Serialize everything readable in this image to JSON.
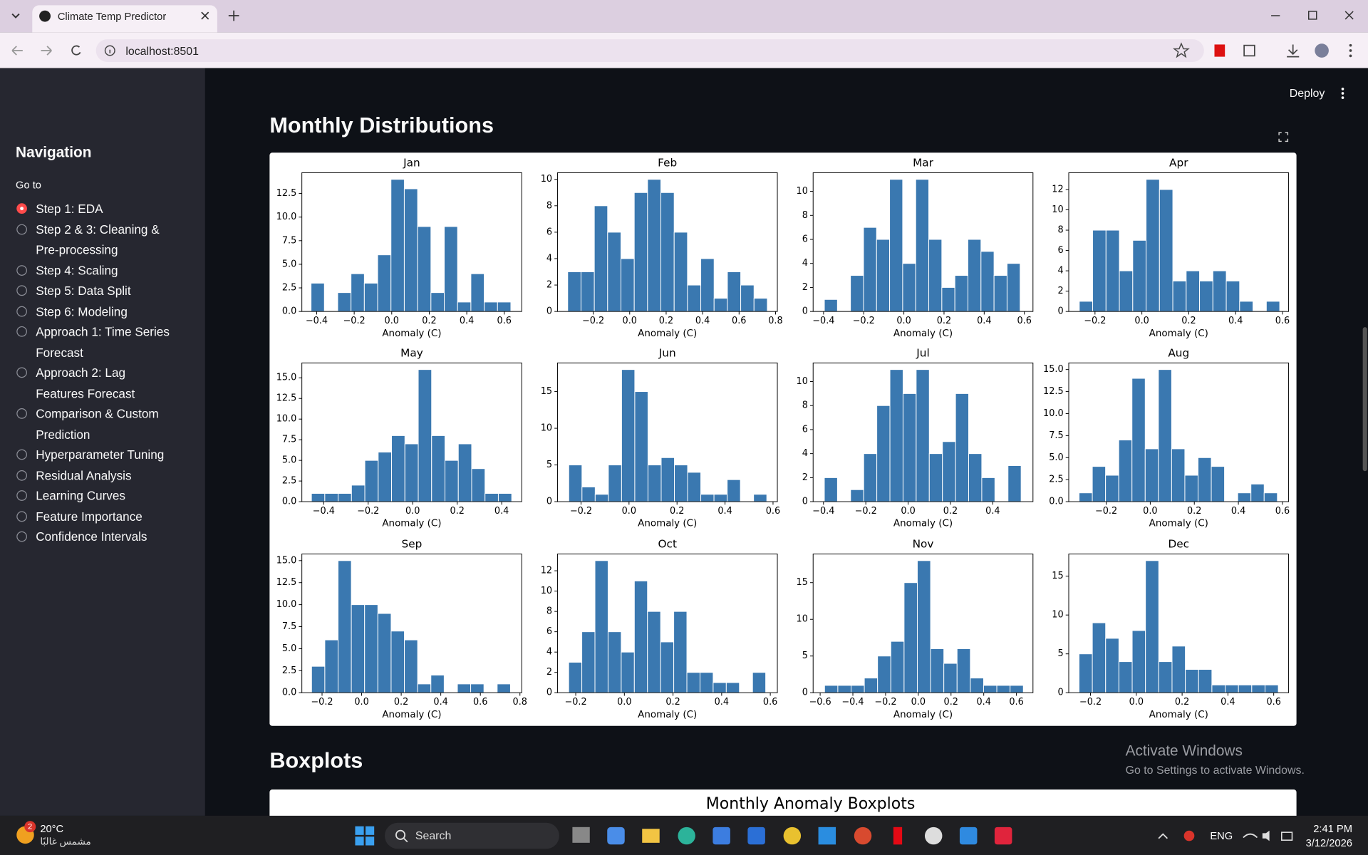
{
  "browser": {
    "tab_title": "Climate Temp Predictor",
    "url": "localhost:8501"
  },
  "app": {
    "deploy": "Deploy",
    "sidebar": {
      "title": "Navigation",
      "label": "Go to",
      "selected": 0,
      "options": [
        "Step 1: EDA",
        "Step 2 & 3: Cleaning & Pre-processing",
        "Step 4: Scaling",
        "Step 5: Data Split",
        "Step 6: Modeling",
        "Approach 1: Time Series Forecast",
        "Approach 2: Lag Features Forecast",
        "Comparison & Custom Prediction",
        "Hyperparameter Tuning",
        "Residual Analysis",
        "Learning Curves",
        "Feature Importance",
        "Confidence Intervals"
      ]
    },
    "sections": [
      "Monthly Distributions",
      "Boxplots"
    ],
    "boxplot_title": "Monthly Anomaly Boxplots"
  },
  "windows": {
    "activate_title": "Activate Windows",
    "activate_text": "Go to Settings to activate Windows.",
    "badge": "2",
    "weather_temp": "20°C",
    "weather_text": "مشمس غالبًا",
    "search": "Search",
    "language": "ENG",
    "time": "2:41 PM",
    "date": "3/12/2026"
  },
  "chart_data": [
    {
      "type": "histogram",
      "title": "Jan",
      "xlabel": "Anomaly (C)",
      "color": "#3a78b0",
      "bins": [
        -0.43,
        -0.359,
        -0.288,
        -0.217,
        -0.146,
        -0.075,
        -0.004,
        0.067,
        0.138,
        0.209,
        0.28,
        0.351,
        0.422,
        0.493,
        0.564,
        0.635
      ],
      "values": [
        3,
        0,
        2,
        4,
        3,
        6,
        14,
        13,
        9,
        2,
        9,
        1,
        4,
        1,
        1
      ],
      "xlim": [
        -0.479,
        0.693
      ],
      "ylim": [
        0,
        14.7
      ],
      "xticks": [
        {
          "value": -0.4,
          "label": "−0.4"
        },
        {
          "value": -0.2,
          "label": "−0.2"
        },
        {
          "value": 0,
          "label": "0.0"
        },
        0.2,
        0.4,
        0.6
      ],
      "yticks": [
        {
          "value": 0,
          "label": "0.0"
        },
        2.5,
        {
          "value": 5,
          "label": "5.0"
        },
        7.5,
        {
          "value": 10,
          "label": "10.0"
        },
        12.5
      ]
    },
    {
      "type": "histogram",
      "title": "Feb",
      "xlabel": "Anomaly (C)",
      "color": "#3a78b0",
      "bins": [
        -0.34,
        -0.267,
        -0.194,
        -0.121,
        -0.048,
        0.025,
        0.098,
        0.171,
        0.244,
        0.317,
        0.39,
        0.463,
        0.536,
        0.609,
        0.682,
        0.755
      ],
      "values": [
        3,
        3,
        8,
        6,
        4,
        9,
        10,
        9,
        6,
        2,
        4,
        1,
        3,
        2,
        1
      ],
      "xlim": [
        -0.396,
        0.81
      ],
      "ylim": [
        0,
        10.5
      ],
      "xticks": [
        {
          "value": -0.2,
          "label": "−0.2"
        },
        {
          "value": 0,
          "label": "0.0"
        },
        0.2,
        0.4,
        0.6,
        0.8
      ],
      "yticks": [
        0,
        2,
        4,
        6,
        8,
        10
      ]
    },
    {
      "type": "histogram",
      "title": "Mar",
      "xlabel": "Anomaly (C)",
      "color": "#3a78b0",
      "bins": [
        -0.396,
        -0.331,
        -0.266,
        -0.201,
        -0.136,
        -0.071,
        -0.006,
        0.059,
        0.124,
        0.189,
        0.254,
        0.319,
        0.384,
        0.449,
        0.514,
        0.579
      ],
      "values": [
        1,
        0,
        3,
        7,
        6,
        11,
        4,
        11,
        6,
        2,
        3,
        6,
        5,
        3,
        4
      ],
      "xlim": [
        -0.452,
        0.643
      ],
      "ylim": [
        0,
        11.55
      ],
      "xticks": [
        {
          "value": -0.4,
          "label": "−0.4"
        },
        {
          "value": -0.2,
          "label": "−0.2"
        },
        {
          "value": 0,
          "label": "0.0"
        },
        0.2,
        0.4,
        0.6
      ],
      "yticks": [
        0,
        2,
        4,
        6,
        8,
        10
      ]
    },
    {
      "type": "histogram",
      "title": "Apr",
      "xlabel": "Anomaly (C)",
      "color": "#3a78b0",
      "bins": [
        -0.267,
        -0.21,
        -0.153,
        -0.096,
        -0.039,
        0.018,
        0.075,
        0.132,
        0.189,
        0.246,
        0.303,
        0.36,
        0.417,
        0.474,
        0.531,
        0.588
      ],
      "values": [
        1,
        8,
        8,
        4,
        7,
        13,
        12,
        3,
        4,
        3,
        4,
        3,
        1,
        0,
        1
      ],
      "xlim": [
        -0.312,
        0.626
      ],
      "ylim": [
        0,
        13.65
      ],
      "xticks": [
        {
          "value": -0.2,
          "label": "−0.2"
        },
        {
          "value": 0,
          "label": "0.0"
        },
        0.2,
        0.4,
        0.6
      ],
      "yticks": [
        0,
        2,
        4,
        6,
        8,
        10,
        12
      ]
    },
    {
      "type": "histogram",
      "title": "May",
      "xlabel": "Anomaly (C)",
      "color": "#3a78b0",
      "bins": [
        -0.455,
        -0.395,
        -0.335,
        -0.275,
        -0.215,
        -0.155,
        -0.095,
        -0.035,
        0.025,
        0.085,
        0.145,
        0.205,
        0.265,
        0.325,
        0.385,
        0.445
      ],
      "values": [
        1,
        1,
        1,
        2,
        5,
        6,
        8,
        7,
        16,
        8,
        5,
        7,
        4,
        1,
        1
      ],
      "xlim": [
        -0.498,
        0.49
      ],
      "ylim": [
        0,
        16.8
      ],
      "xticks": [
        {
          "value": -0.4,
          "label": "−0.4"
        },
        {
          "value": -0.2,
          "label": "−0.2"
        },
        {
          "value": 0,
          "label": "0.0"
        },
        0.2,
        0.4
      ],
      "yticks": [
        {
          "value": 0,
          "label": "0.0"
        },
        2.5,
        {
          "value": 5,
          "label": "5.0"
        },
        7.5,
        {
          "value": 10,
          "label": "10.0"
        },
        12.5,
        {
          "value": 15,
          "label": "15.0"
        }
      ]
    },
    {
      "type": "histogram",
      "title": "Jun",
      "xlabel": "Anomaly (C)",
      "color": "#3a78b0",
      "bins": [
        -0.251,
        -0.196,
        -0.141,
        -0.086,
        -0.031,
        0.024,
        0.079,
        0.134,
        0.189,
        0.244,
        0.299,
        0.354,
        0.409,
        0.464,
        0.519,
        0.574
      ],
      "values": [
        5,
        2,
        1,
        5,
        18,
        15,
        5,
        6,
        5,
        4,
        1,
        1,
        3,
        0,
        1
      ],
      "xlim": [
        -0.298,
        0.618
      ],
      "ylim": [
        0,
        18.9
      ],
      "xticks": [
        {
          "value": -0.2,
          "label": "−0.2"
        },
        {
          "value": 0,
          "label": "0.0"
        },
        0.2,
        0.4,
        0.6
      ],
      "yticks": [
        0,
        5,
        10,
        15
      ]
    },
    {
      "type": "histogram",
      "title": "Jul",
      "xlabel": "Anomaly (C)",
      "color": "#3a78b0",
      "bins": [
        -0.396,
        -0.334,
        -0.272,
        -0.21,
        -0.148,
        -0.086,
        -0.024,
        0.038,
        0.1,
        0.162,
        0.224,
        0.286,
        0.348,
        0.41,
        0.472,
        0.534
      ],
      "values": [
        2,
        0,
        1,
        4,
        8,
        11,
        9,
        11,
        4,
        5,
        9,
        4,
        2,
        0,
        3
      ],
      "xlim": [
        -0.449,
        0.59
      ],
      "ylim": [
        0,
        11.55
      ],
      "xticks": [
        {
          "value": -0.4,
          "label": "−0.4"
        },
        {
          "value": -0.2,
          "label": "−0.2"
        },
        {
          "value": 0,
          "label": "0.0"
        },
        0.2,
        0.4
      ],
      "yticks": [
        0,
        2,
        4,
        6,
        8,
        10
      ]
    },
    {
      "type": "histogram",
      "title": "Aug",
      "xlabel": "Anomaly (C)",
      "color": "#3a78b0",
      "bins": [
        -0.323,
        -0.263,
        -0.203,
        -0.143,
        -0.083,
        -0.023,
        0.037,
        0.097,
        0.157,
        0.217,
        0.277,
        0.337,
        0.397,
        0.457,
        0.517,
        0.577
      ],
      "values": [
        1,
        4,
        3,
        7,
        14,
        6,
        15,
        6,
        3,
        5,
        4,
        0,
        1,
        2,
        1
      ],
      "xlim": [
        -0.37,
        0.628
      ],
      "ylim": [
        0,
        15.75
      ],
      "xticks": [
        {
          "value": -0.2,
          "label": "−0.2"
        },
        {
          "value": 0,
          "label": "0.0"
        },
        0.2,
        0.4,
        0.6
      ],
      "yticks": [
        {
          "value": 0,
          "label": "0.0"
        },
        2.5,
        {
          "value": 5,
          "label": "5.0"
        },
        7.5,
        {
          "value": 10,
          "label": "10.0"
        },
        12.5,
        {
          "value": 15,
          "label": "15.0"
        }
      ]
    },
    {
      "type": "histogram",
      "title": "Sep",
      "xlabel": "Anomaly (C)",
      "color": "#3a78b0",
      "bins": [
        -0.253,
        -0.186,
        -0.119,
        -0.052,
        0.015,
        0.082,
        0.149,
        0.216,
        0.283,
        0.35,
        0.417,
        0.484,
        0.551,
        0.618,
        0.685,
        0.752
      ],
      "values": [
        3,
        6,
        15,
        10,
        10,
        9,
        7,
        6,
        1,
        2,
        0,
        1,
        1,
        0,
        1
      ],
      "xlim": [
        -0.302,
        0.809
      ],
      "ylim": [
        0,
        15.75
      ],
      "xticks": [
        {
          "value": -0.2,
          "label": "−0.2"
        },
        {
          "value": 0,
          "label": "0.0"
        },
        0.2,
        0.4,
        0.6,
        0.8
      ],
      "yticks": [
        {
          "value": 0,
          "label": "0.0"
        },
        2.5,
        {
          "value": 5,
          "label": "5.0"
        },
        7.5,
        {
          "value": 10,
          "label": "10.0"
        },
        12.5,
        {
          "value": 15,
          "label": "15.0"
        }
      ]
    },
    {
      "type": "histogram",
      "title": "Oct",
      "xlabel": "Anomaly (C)",
      "color": "#3a78b0",
      "bins": [
        -0.229,
        -0.175,
        -0.121,
        -0.067,
        -0.013,
        0.041,
        0.095,
        0.149,
        0.203,
        0.257,
        0.311,
        0.365,
        0.419,
        0.473,
        0.527,
        0.581
      ],
      "values": [
        3,
        6,
        13,
        6,
        4,
        11,
        8,
        5,
        8,
        2,
        2,
        1,
        1,
        0,
        2
      ],
      "xlim": [
        -0.275,
        0.629
      ],
      "ylim": [
        0,
        13.65
      ],
      "xticks": [
        {
          "value": -0.2,
          "label": "−0.2"
        },
        {
          "value": 0,
          "label": "0.0"
        },
        0.2,
        0.4,
        0.6
      ],
      "yticks": [
        0,
        2,
        4,
        6,
        8,
        10,
        12
      ]
    },
    {
      "type": "histogram",
      "title": "Nov",
      "xlabel": "Anomaly (C)",
      "color": "#3a78b0",
      "bins": [
        -0.573,
        -0.492,
        -0.411,
        -0.33,
        -0.249,
        -0.168,
        -0.087,
        -0.006,
        0.075,
        0.156,
        0.237,
        0.318,
        0.399,
        0.48,
        0.561,
        0.642
      ],
      "values": [
        1,
        1,
        1,
        2,
        5,
        7,
        15,
        18,
        6,
        4,
        6,
        2,
        1,
        1,
        1
      ],
      "xlim": [
        -0.643,
        0.701
      ],
      "ylim": [
        0,
        18.9
      ],
      "xticks": [
        {
          "value": -0.6,
          "label": "−0.6"
        },
        {
          "value": -0.4,
          "label": "−0.4"
        },
        {
          "value": -0.2,
          "label": "−0.2"
        },
        {
          "value": 0,
          "label": "0.0"
        },
        0.2,
        0.4,
        0.6
      ],
      "yticks": [
        0,
        5,
        10,
        15
      ]
    },
    {
      "type": "histogram",
      "title": "Dec",
      "xlabel": "Anomaly (C)",
      "color": "#3a78b0",
      "bins": [
        -0.25,
        -0.192,
        -0.134,
        -0.076,
        -0.018,
        0.04,
        0.098,
        0.156,
        0.214,
        0.272,
        0.33,
        0.388,
        0.446,
        0.504,
        0.562,
        0.62
      ],
      "values": [
        5,
        9,
        7,
        4,
        8,
        17,
        4,
        6,
        3,
        3,
        1,
        1,
        1,
        1,
        1
      ],
      "xlim": [
        -0.295,
        0.665
      ],
      "ylim": [
        0,
        17.85
      ],
      "xticks": [
        {
          "value": -0.2,
          "label": "−0.2"
        },
        {
          "value": 0,
          "label": "0.0"
        },
        0.2,
        0.4,
        0.6
      ],
      "yticks": [
        0,
        5,
        10,
        15
      ]
    }
  ]
}
